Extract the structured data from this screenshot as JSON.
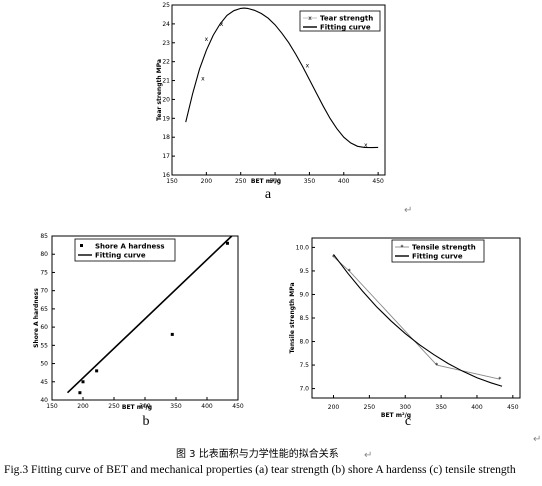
{
  "chart_data": [
    {
      "id": "a",
      "type": "scatter",
      "panel_label": "a",
      "title": "",
      "xlabel": "BET m²/g",
      "ylabel": "Tear strength MPa",
      "xlim": [
        150,
        460
      ],
      "ylim": [
        16,
        25
      ],
      "xticks": [
        "150",
        "200",
        "250",
        "300",
        "350",
        "400",
        "450"
      ],
      "yticks": [
        "16",
        "17",
        "18",
        "19",
        "20",
        "21",
        "22",
        "23",
        "24",
        "25"
      ],
      "legend": [
        "Tear strength",
        "Fitting curve"
      ],
      "legend_position": "top-right",
      "series": [
        {
          "name": "Tear strength",
          "kind": "points",
          "x": [
            195,
            200,
            222,
            347,
            432
          ],
          "y": [
            21.1,
            23.2,
            24.0,
            21.8,
            17.6
          ]
        },
        {
          "name": "Fitting curve",
          "kind": "line",
          "x": [
            170,
            180,
            190,
            200,
            210,
            220,
            230,
            240,
            250,
            255,
            260,
            270,
            280,
            290,
            300,
            310,
            320,
            330,
            340,
            350,
            360,
            370,
            380,
            390,
            400,
            410,
            420,
            430,
            440,
            450
          ],
          "y": [
            18.8,
            20.3,
            21.6,
            22.6,
            23.4,
            24.0,
            24.45,
            24.7,
            24.82,
            24.84,
            24.82,
            24.72,
            24.55,
            24.3,
            23.95,
            23.5,
            23.0,
            22.4,
            21.75,
            21.05,
            20.35,
            19.65,
            19.0,
            18.45,
            18.0,
            17.7,
            17.52,
            17.46,
            17.45,
            17.46
          ]
        }
      ]
    },
    {
      "id": "b",
      "type": "scatter",
      "panel_label": "b",
      "title": "",
      "xlabel": "BET m²/g",
      "ylabel": "Shore A hardness",
      "xlim": [
        150,
        450
      ],
      "ylim": [
        40,
        85
      ],
      "xticks": [
        "150",
        "200",
        "250",
        "300",
        "350",
        "400",
        "450"
      ],
      "yticks": [
        "40",
        "45",
        "50",
        "55",
        "60",
        "65",
        "70",
        "75",
        "80",
        "85"
      ],
      "legend": [
        "Shore A hardness",
        "Fitting curve"
      ],
      "legend_position": "top-left",
      "series": [
        {
          "name": "Shore A hardness",
          "kind": "points",
          "x": [
            195,
            200,
            222,
            344,
            433
          ],
          "y": [
            42,
            45,
            48,
            58,
            83
          ]
        },
        {
          "name": "Fitting curve",
          "kind": "line",
          "x": [
            175,
            440
          ],
          "y": [
            42,
            85
          ]
        }
      ]
    },
    {
      "id": "c",
      "type": "line",
      "panel_label": "c",
      "title": "",
      "xlabel": "BET m²/g",
      "ylabel": "Tensile strength MPa",
      "xlim": [
        170,
        460
      ],
      "ylim": [
        6.8,
        10.2
      ],
      "xticks": [
        "200",
        "250",
        "300",
        "350",
        "400",
        "450"
      ],
      "yticks": [
        "7.0",
        "7.5",
        "8.0",
        "8.5",
        "9.0",
        "9.5",
        "10.0"
      ],
      "legend": [
        "Tensile strength",
        "Fitting curve"
      ],
      "legend_position": "top-right",
      "series": [
        {
          "name": "Tensile strength",
          "kind": "line-points",
          "x": [
            200,
            222,
            344,
            432
          ],
          "y": [
            9.8,
            9.5,
            7.5,
            7.2
          ]
        },
        {
          "name": "Fitting curve",
          "kind": "line",
          "x": [
            200,
            220,
            240,
            260,
            280,
            300,
            320,
            340,
            360,
            380,
            400,
            420,
            435
          ],
          "y": [
            9.85,
            9.45,
            9.08,
            8.74,
            8.44,
            8.17,
            7.93,
            7.72,
            7.53,
            7.37,
            7.23,
            7.12,
            7.05
          ]
        }
      ]
    }
  ],
  "caption": {
    "chinese": "图 3  比表面积与力学性能的拟合关系",
    "english": "Fig.3 Fitting curve of BET and mechanical properties (a) tear strength (b) shore A hardenss (c) tensile strength"
  }
}
